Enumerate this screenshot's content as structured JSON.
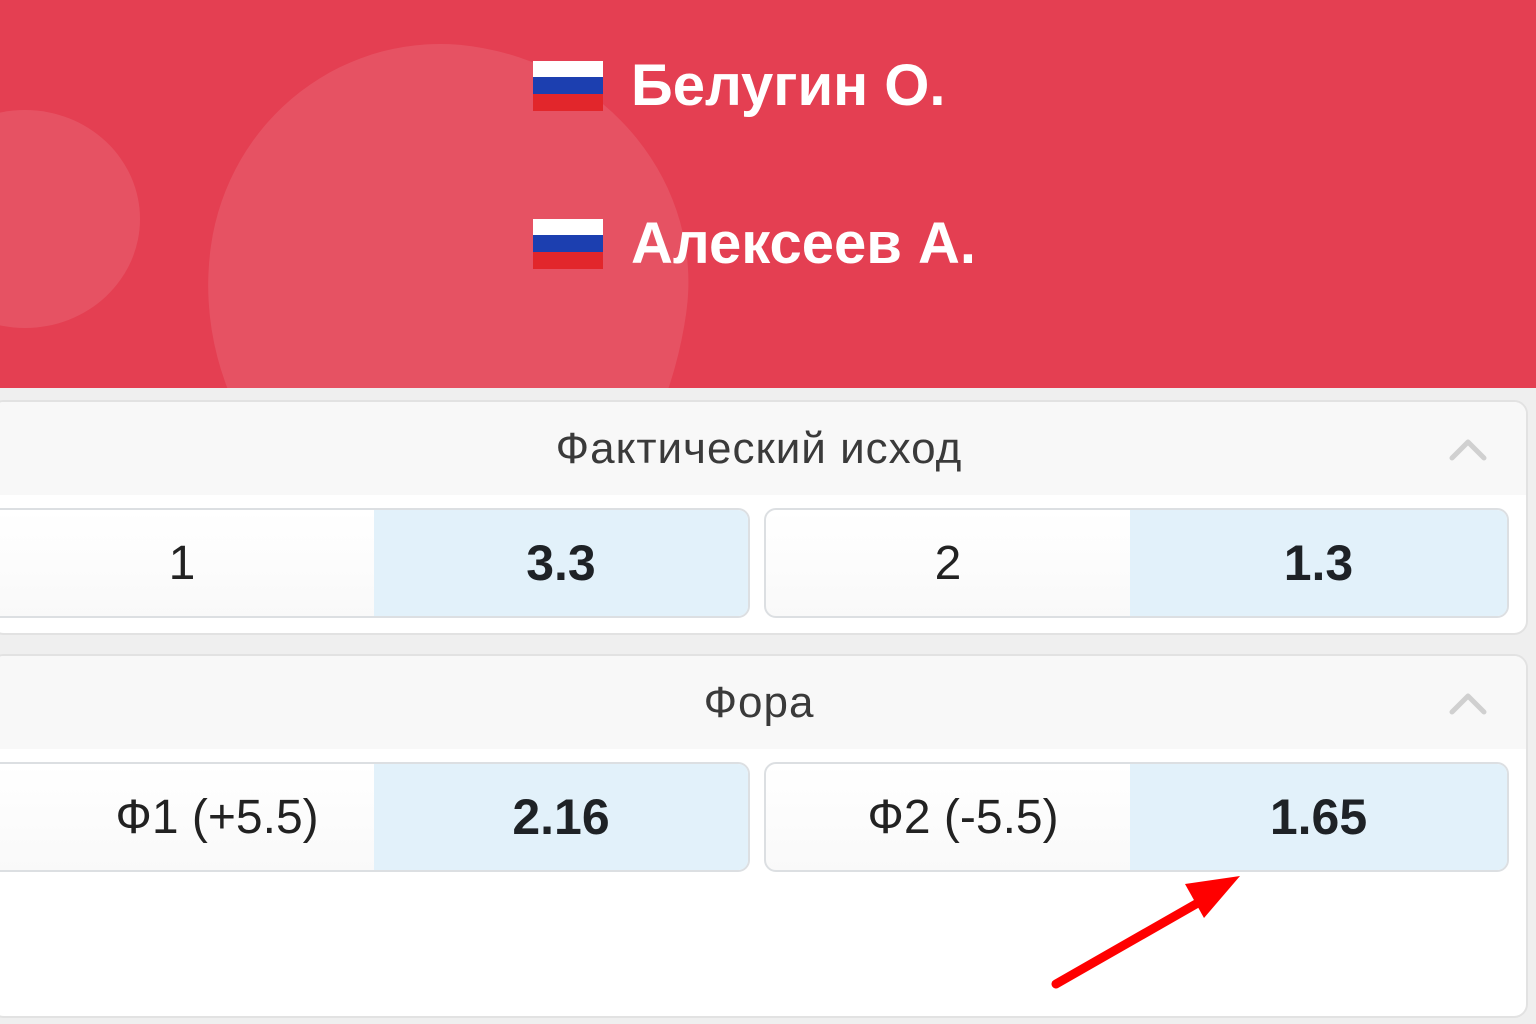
{
  "players": [
    {
      "name": "Белугин О.",
      "flag": "russia-flag"
    },
    {
      "name": "Алексеев А.",
      "flag": "russia-flag"
    }
  ],
  "colors": {
    "header": "#e43f52",
    "odds_bg": "#e2f1fa",
    "arrow": "#ff0000"
  },
  "markets": [
    {
      "title": "Фактический исход",
      "outcomes": [
        {
          "label": "1",
          "odds": "3.3"
        },
        {
          "label": "2",
          "odds": "1.3"
        }
      ]
    },
    {
      "title": "Фора",
      "outcomes": [
        {
          "label": "Ф1 (+5.5)",
          "odds": "2.16"
        },
        {
          "label": "Ф2 (-5.5)",
          "odds": "1.65"
        }
      ]
    }
  ]
}
